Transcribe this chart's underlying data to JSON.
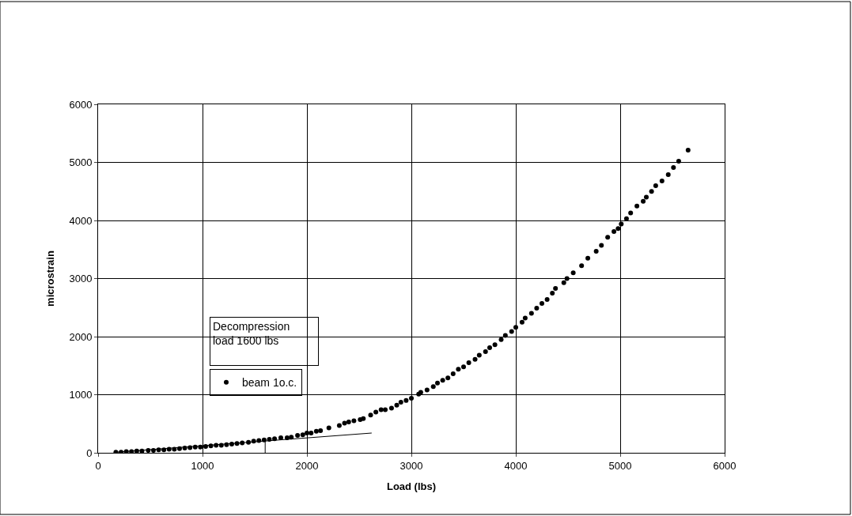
{
  "chart_data": {
    "type": "scatter",
    "xlabel": "Load (lbs)",
    "ylabel": "microstrain",
    "xlim": [
      0,
      6000
    ],
    "xticks": [
      0,
      1000,
      2000,
      3000,
      4000,
      5000,
      6000
    ],
    "ylim": [
      0,
      6000
    ],
    "yticks": [
      0,
      1000,
      2000,
      3000,
      4000,
      5000,
      6000
    ],
    "grid": true,
    "legend": "left",
    "annotations": [
      "Decompression\nload 1600 lbs"
    ],
    "series": [
      {
        "name": "beam 1o.c.",
        "color": "#000000",
        "marker": "circle",
        "x": [
          170,
          220,
          270,
          320,
          370,
          420,
          480,
          530,
          580,
          630,
          680,
          730,
          780,
          830,
          880,
          930,
          980,
          1030,
          1080,
          1130,
          1180,
          1230,
          1280,
          1330,
          1380,
          1440,
          1490,
          1540,
          1590,
          1640,
          1690,
          1750,
          1810,
          1850,
          1910,
          1960,
          2000,
          2040,
          2090,
          2130,
          2210,
          2310,
          2360,
          2400,
          2450,
          2510,
          2540,
          2610,
          2660,
          2710,
          2750,
          2810,
          2860,
          2900,
          2950,
          3000,
          3070,
          3090,
          3150,
          3210,
          3250,
          3300,
          3350,
          3400,
          3450,
          3500,
          3550,
          3610,
          3650,
          3710,
          3750,
          3800,
          3860,
          3900,
          3960,
          4000,
          4060,
          4090,
          4150,
          4200,
          4250,
          4300,
          4350,
          4380,
          4460,
          4490,
          4550,
          4630,
          4690,
          4770,
          4820,
          4880,
          4940,
          4980,
          5010,
          5060,
          5100,
          5160,
          5220,
          5250,
          5300,
          5340,
          5400,
          5460,
          5510,
          5560,
          5650
        ],
        "values": [
          10,
          10,
          20,
          20,
          30,
          30,
          40,
          40,
          50,
          50,
          60,
          60,
          70,
          80,
          90,
          100,
          100,
          110,
          120,
          130,
          130,
          140,
          150,
          160,
          170,
          180,
          200,
          210,
          220,
          230,
          240,
          260,
          260,
          270,
          300,
          310,
          340,
          340,
          370,
          380,
          430,
          470,
          510,
          530,
          550,
          570,
          590,
          650,
          700,
          740,
          740,
          770,
          820,
          870,
          900,
          940,
          1010,
          1040,
          1080,
          1140,
          1200,
          1250,
          1290,
          1360,
          1440,
          1480,
          1550,
          1610,
          1680,
          1740,
          1810,
          1860,
          1950,
          2020,
          2090,
          2160,
          2250,
          2320,
          2400,
          2490,
          2570,
          2640,
          2750,
          2830,
          2930,
          3000,
          3100,
          3220,
          3350,
          3470,
          3570,
          3710,
          3810,
          3860,
          3940,
          4030,
          4130,
          4250,
          4330,
          4400,
          4500,
          4600,
          4680,
          4790,
          4910,
          5020,
          5210
        ]
      },
      {
        "color": "#000000",
        "type": "line",
        "x": [
          170,
          2620
        ],
        "values": [
          10,
          340
        ]
      },
      {
        "color": "#000000",
        "type": "line",
        "x": [
          1600,
          1600
        ],
        "values": [
          0,
          210
        ]
      }
    ]
  }
}
